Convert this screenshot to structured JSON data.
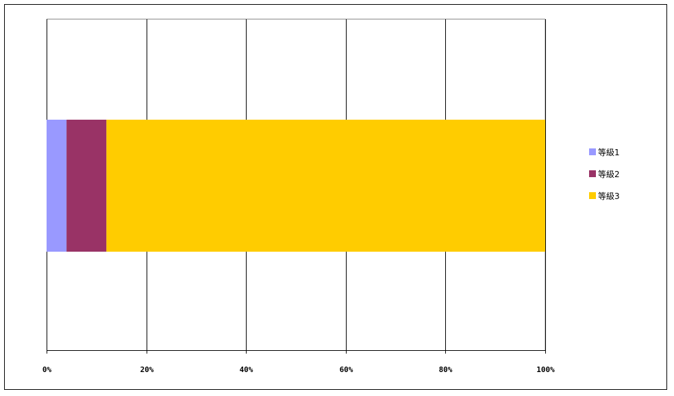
{
  "chart_data": {
    "type": "bar",
    "orientation": "horizontal",
    "stacked": "percent",
    "categories": [
      ""
    ],
    "series": [
      {
        "name": "等級1",
        "values": [
          4
        ],
        "color": "#9999ff"
      },
      {
        "name": "等級2",
        "values": [
          8
        ],
        "color": "#993366"
      },
      {
        "name": "等級3",
        "values": [
          88
        ],
        "color": "#ffcc00"
      }
    ],
    "xlim": [
      0,
      100
    ],
    "xticks": [
      "0%",
      "20%",
      "40%",
      "60%",
      "80%",
      "100%"
    ],
    "grid": "vertical",
    "legend": "right"
  }
}
